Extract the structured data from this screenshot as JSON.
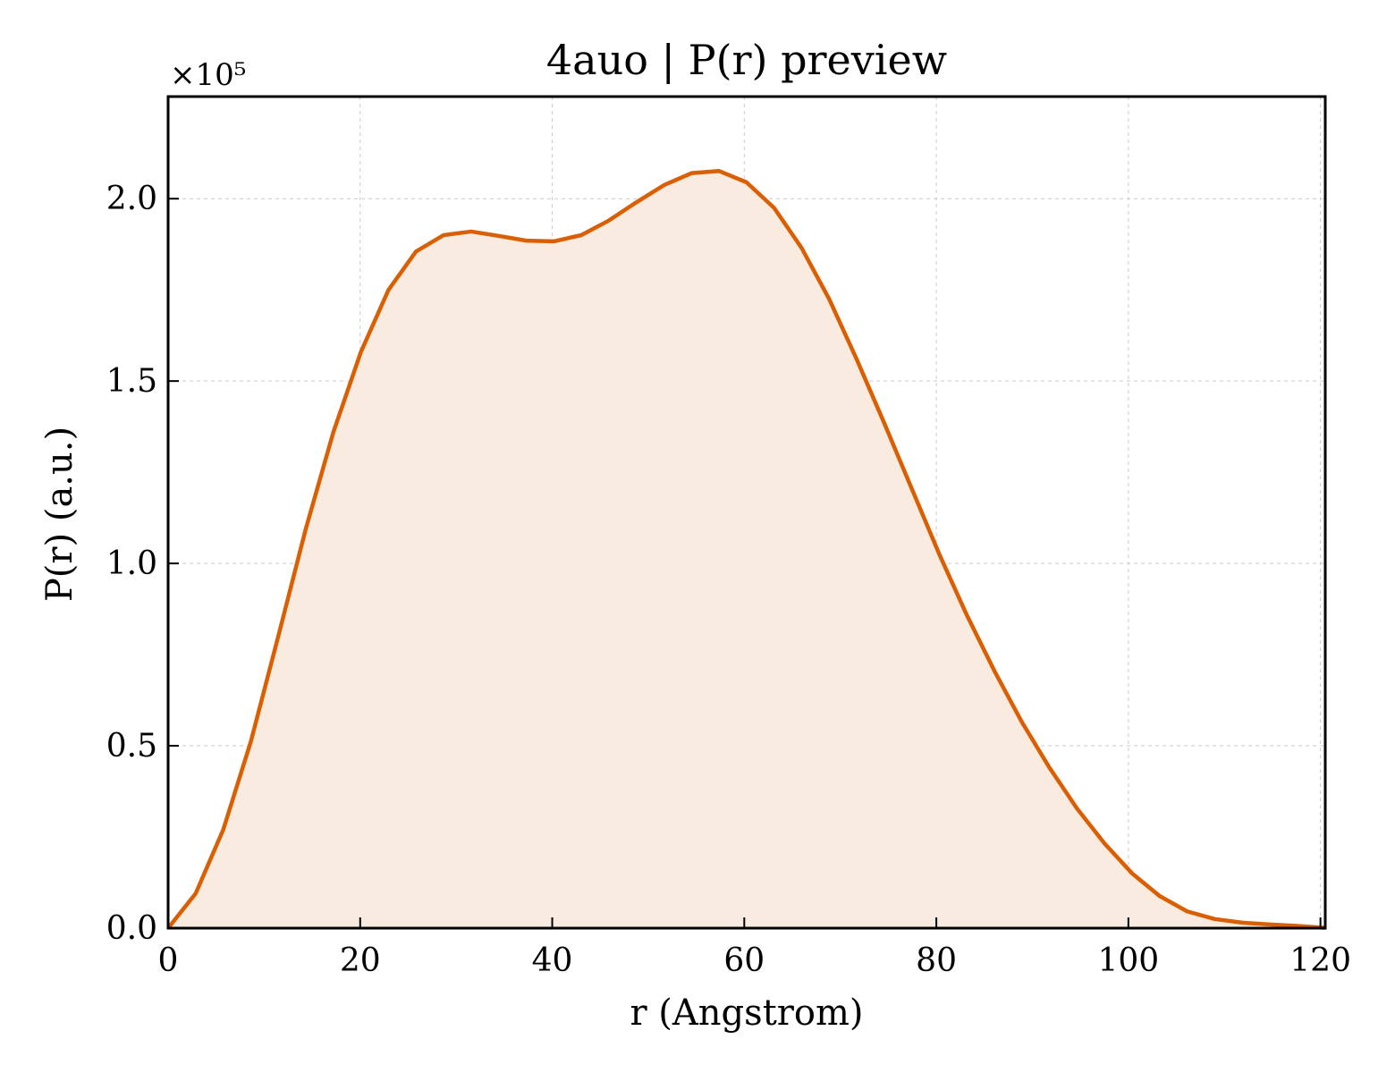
{
  "chart_data": {
    "type": "area",
    "title": "4auo | P(r) preview",
    "xlabel": "r (Angstrom)",
    "ylabel": "P(r) (a.u.)",
    "y_multiplier_label": "×10⁵",
    "xlim": [
      0,
      120.5
    ],
    "ylim": [
      0,
      2.28
    ],
    "grid": true,
    "x_ticks": [
      0,
      20,
      40,
      60,
      80,
      100,
      120
    ],
    "y_ticks": [
      0.0,
      0.5,
      1.0,
      1.5,
      2.0
    ],
    "x_tick_labels": [
      "0",
      "20",
      "40",
      "60",
      "80",
      "100",
      "120"
    ],
    "y_tick_labels": [
      "0.0",
      "0.5",
      "1.0",
      "1.5",
      "2.0"
    ],
    "line_color": "#d95f02",
    "fill_color": "#f9ebe0",
    "series": [
      {
        "x": [
          0,
          2.87,
          5.74,
          8.6,
          11.47,
          14.34,
          17.21,
          20.08,
          22.95,
          25.81,
          28.68,
          31.55,
          34.42,
          37.29,
          40.15,
          43.02,
          45.89,
          48.76,
          51.63,
          54.5,
          57.36,
          60.23,
          63.1,
          65.97,
          68.84,
          71.7,
          74.57,
          77.44,
          80.31,
          83.18,
          86.05,
          88.91,
          91.78,
          94.65,
          97.52,
          100.39,
          103.26,
          106.12,
          108.99,
          111.86,
          114.73,
          117.6,
          120.47
        ],
        "y": [
          0.0,
          0.095,
          0.27,
          0.51,
          0.8,
          1.095,
          1.36,
          1.58,
          1.75,
          1.855,
          1.9,
          1.91,
          1.898,
          1.885,
          1.883,
          1.9,
          1.94,
          1.99,
          2.037,
          2.07,
          2.076,
          2.045,
          1.975,
          1.865,
          1.725,
          1.56,
          1.385,
          1.205,
          1.025,
          0.858,
          0.705,
          0.565,
          0.44,
          0.328,
          0.232,
          0.15,
          0.088,
          0.046,
          0.025,
          0.015,
          0.01,
          0.006,
          0.001
        ]
      }
    ]
  }
}
